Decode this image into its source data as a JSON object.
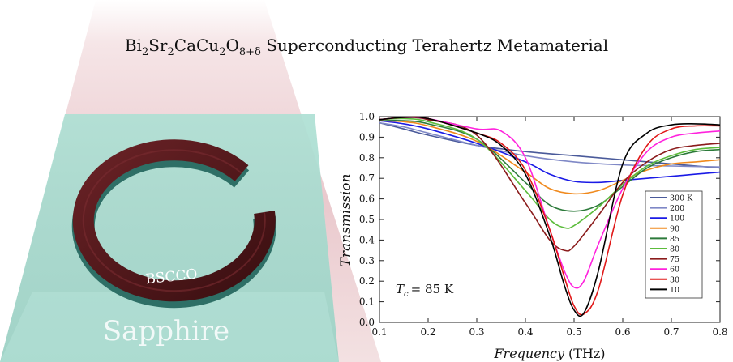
{
  "title": {
    "formula_parts": [
      "Bi",
      "2",
      "Sr",
      "2",
      "CaCu",
      "2",
      "O",
      "8+δ"
    ],
    "text": "Superconducting Terahertz Metamaterial"
  },
  "illustration": {
    "substrate_label": "Sapphire",
    "ring_label": "BSCCO",
    "colors": {
      "substrate": "#a9dccf",
      "ring": "#4a1618",
      "beam": "#e9c4c8"
    }
  },
  "chart_data": {
    "type": "line",
    "xlabel": "Frequency (THz)",
    "xlabel_italic": "Frequency",
    "xlabel_unit": "(THz)",
    "ylabel": "Transmission",
    "xlim": [
      0.1,
      0.8
    ],
    "ylim": [
      0.0,
      1.0
    ],
    "xticks": [
      "0.1",
      "0.2",
      "0.3",
      "0.4",
      "0.5",
      "0.6",
      "0.7",
      "0.8"
    ],
    "yticks": [
      "0.0",
      "0.1",
      "0.2",
      "0.3",
      "0.4",
      "0.5",
      "0.6",
      "0.7",
      "0.8",
      "0.9",
      "1.0"
    ],
    "annotation": {
      "symbol": "T",
      "subscript": "c",
      "text": "= 85 K"
    },
    "legend_position": "right",
    "series": [
      {
        "name": "300 K",
        "color": "#4a5a9a",
        "x": [
          0.1,
          0.15,
          0.2,
          0.3,
          0.4,
          0.5,
          0.6,
          0.7,
          0.8
        ],
        "y": [
          0.97,
          0.94,
          0.91,
          0.86,
          0.83,
          0.81,
          0.79,
          0.77,
          0.75
        ]
      },
      {
        "name": "200",
        "color": "#7f88c6",
        "x": [
          0.1,
          0.15,
          0.2,
          0.3,
          0.4,
          0.5,
          0.6,
          0.7,
          0.8
        ],
        "y": [
          0.97,
          0.95,
          0.92,
          0.86,
          0.81,
          0.78,
          0.765,
          0.76,
          0.755
        ]
      },
      {
        "name": "100",
        "color": "#1a1ae6",
        "x": [
          0.1,
          0.15,
          0.2,
          0.3,
          0.4,
          0.45,
          0.5,
          0.55,
          0.6,
          0.65,
          0.7,
          0.75,
          0.8
        ],
        "y": [
          0.98,
          0.965,
          0.94,
          0.87,
          0.78,
          0.72,
          0.685,
          0.68,
          0.69,
          0.7,
          0.71,
          0.72,
          0.73
        ]
      },
      {
        "name": "90",
        "color": "#f08a1e",
        "x": [
          0.1,
          0.15,
          0.2,
          0.3,
          0.4,
          0.45,
          0.5,
          0.55,
          0.6,
          0.65,
          0.7,
          0.75,
          0.8
        ],
        "y": [
          0.98,
          0.975,
          0.955,
          0.88,
          0.73,
          0.65,
          0.625,
          0.64,
          0.69,
          0.74,
          0.77,
          0.78,
          0.79
        ]
      },
      {
        "name": "85",
        "color": "#2c7a3a",
        "x": [
          0.1,
          0.15,
          0.2,
          0.3,
          0.4,
          0.45,
          0.5,
          0.55,
          0.6,
          0.65,
          0.7,
          0.75,
          0.8
        ],
        "y": [
          0.98,
          0.98,
          0.965,
          0.89,
          0.68,
          0.57,
          0.54,
          0.57,
          0.66,
          0.75,
          0.8,
          0.83,
          0.84
        ]
      },
      {
        "name": "80",
        "color": "#5cbc3c",
        "x": [
          0.1,
          0.15,
          0.2,
          0.3,
          0.4,
          0.45,
          0.48,
          0.5,
          0.55,
          0.6,
          0.65,
          0.7,
          0.75,
          0.8
        ],
        "y": [
          0.985,
          0.99,
          0.975,
          0.89,
          0.64,
          0.5,
          0.46,
          0.47,
          0.56,
          0.67,
          0.76,
          0.81,
          0.84,
          0.85
        ]
      },
      {
        "name": "75",
        "color": "#8b1c1c",
        "x": [
          0.1,
          0.15,
          0.2,
          0.3,
          0.4,
          0.45,
          0.48,
          0.5,
          0.55,
          0.6,
          0.65,
          0.7,
          0.75,
          0.8
        ],
        "y": [
          0.985,
          1.0,
          0.985,
          0.91,
          0.58,
          0.4,
          0.35,
          0.37,
          0.52,
          0.68,
          0.78,
          0.84,
          0.86,
          0.87
        ]
      },
      {
        "name": "60",
        "color": "#ff22dd",
        "x": [
          0.1,
          0.15,
          0.2,
          0.3,
          0.35,
          0.4,
          0.45,
          0.48,
          0.5,
          0.52,
          0.55,
          0.6,
          0.65,
          0.7,
          0.75,
          0.8
        ],
        "y": [
          0.985,
          1.0,
          0.99,
          0.94,
          0.93,
          0.8,
          0.45,
          0.25,
          0.17,
          0.2,
          0.38,
          0.65,
          0.83,
          0.9,
          0.92,
          0.93
        ]
      },
      {
        "name": "30",
        "color": "#e01818",
        "x": [
          0.1,
          0.15,
          0.2,
          0.3,
          0.35,
          0.4,
          0.45,
          0.48,
          0.5,
          0.52,
          0.55,
          0.6,
          0.65,
          0.7,
          0.75,
          0.8
        ],
        "y": [
          0.985,
          1.0,
          0.99,
          0.92,
          0.87,
          0.74,
          0.45,
          0.22,
          0.08,
          0.04,
          0.16,
          0.62,
          0.86,
          0.94,
          0.955,
          0.955
        ]
      },
      {
        "name": "10",
        "color": "#000000",
        "x": [
          0.1,
          0.15,
          0.2,
          0.3,
          0.35,
          0.4,
          0.45,
          0.48,
          0.5,
          0.52,
          0.55,
          0.6,
          0.65,
          0.7,
          0.75,
          0.8
        ],
        "y": [
          0.985,
          1.0,
          0.99,
          0.92,
          0.86,
          0.72,
          0.42,
          0.18,
          0.06,
          0.045,
          0.25,
          0.77,
          0.92,
          0.96,
          0.965,
          0.96
        ]
      }
    ]
  }
}
